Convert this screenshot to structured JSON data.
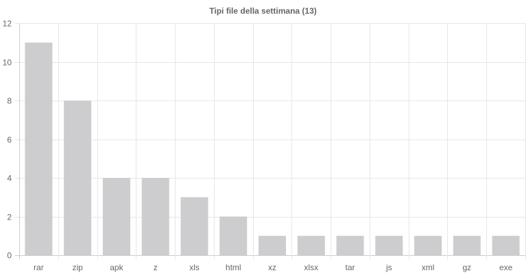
{
  "chart_data": {
    "type": "bar",
    "title": "Tipi file della settimana (13)",
    "xlabel": "",
    "ylabel": "",
    "categories": [
      "rar",
      "zip",
      "apk",
      "z",
      "xls",
      "html",
      "xz",
      "xlsx",
      "tar",
      "js",
      "xml",
      "gz",
      "exe"
    ],
    "values": [
      11,
      8,
      4,
      4,
      3,
      2,
      1,
      1,
      1,
      1,
      1,
      1,
      1
    ],
    "ylim": [
      0,
      12
    ],
    "yticks": [
      0,
      2,
      4,
      6,
      8,
      10,
      12
    ],
    "grid": true,
    "legend": "none",
    "colors": {
      "bar": "#cdcdcf",
      "grid": "#e6e6e6",
      "text": "#666666"
    }
  }
}
